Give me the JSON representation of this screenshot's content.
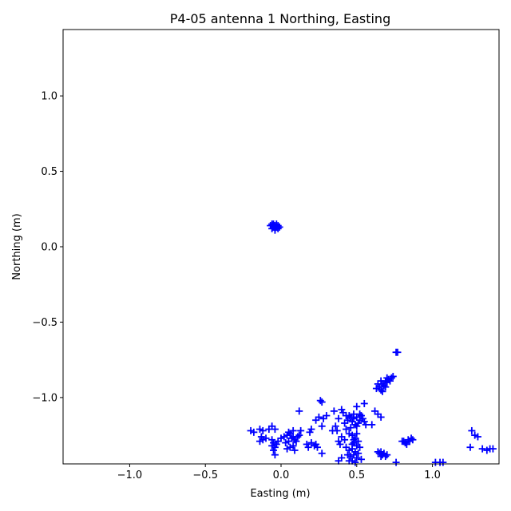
{
  "chart_data": {
    "type": "scatter",
    "title": "P4-05 antenna 1 Northing, Easting",
    "xlabel": "Easting (m)",
    "ylabel": "Northing (m)",
    "xlim": [
      -1.44,
      1.44
    ],
    "ylim": [
      -1.44,
      1.44
    ],
    "xticks": [
      {
        "value": -1.0,
        "label": "−1.0"
      },
      {
        "value": -0.5,
        "label": "−0.5"
      },
      {
        "value": 0.0,
        "label": "0.0"
      },
      {
        "value": 0.5,
        "label": "0.5"
      },
      {
        "value": 1.0,
        "label": "1.0"
      }
    ],
    "yticks": [
      {
        "value": 1.0,
        "label": "1.0"
      },
      {
        "value": 0.5,
        "label": "0.5"
      },
      {
        "value": 0.0,
        "label": "0.0"
      },
      {
        "value": -0.5,
        "label": "−0.5"
      },
      {
        "value": -1.0,
        "label": "−1.0"
      }
    ],
    "grid": false,
    "marker": "+",
    "color": "#0000ff",
    "series": [
      {
        "points": [
          [
            -0.05,
            0.14
          ],
          [
            -0.03,
            0.13
          ],
          [
            -0.06,
            0.15
          ],
          [
            -0.04,
            0.12
          ],
          [
            -0.02,
            0.14
          ],
          [
            -0.05,
            0.13
          ],
          [
            -0.07,
            0.14
          ],
          [
            -0.03,
            0.15
          ],
          [
            -0.04,
            0.11
          ],
          [
            -0.02,
            0.12
          ],
          [
            -0.06,
            0.12
          ],
          [
            -0.05,
            0.15
          ],
          [
            -0.01,
            0.13
          ],
          [
            -0.04,
            0.14
          ],
          [
            0.77,
            -0.7
          ],
          [
            0.76,
            -0.7
          ],
          [
            0.65,
            -0.93
          ],
          [
            0.67,
            -0.91
          ],
          [
            0.69,
            -0.89
          ],
          [
            0.71,
            -0.88
          ],
          [
            0.73,
            -0.87
          ],
          [
            0.66,
            -0.95
          ],
          [
            0.68,
            -0.92
          ],
          [
            0.7,
            -0.9
          ],
          [
            0.64,
            -0.91
          ],
          [
            0.72,
            -0.89
          ],
          [
            0.66,
            -0.89
          ],
          [
            0.69,
            -0.93
          ],
          [
            0.74,
            -0.86
          ],
          [
            0.67,
            -0.96
          ],
          [
            0.63,
            -0.94
          ],
          [
            0.7,
            -0.87
          ],
          [
            0.26,
            -1.02
          ],
          [
            0.27,
            -1.03
          ],
          [
            0.55,
            -1.04
          ],
          [
            0.5,
            -1.06
          ],
          [
            0.4,
            -1.08
          ],
          [
            0.35,
            -1.09
          ],
          [
            0.12,
            -1.09
          ],
          [
            0.62,
            -1.09
          ],
          [
            0.64,
            -1.11
          ],
          [
            0.66,
            -1.13
          ],
          [
            0.3,
            -1.12
          ],
          [
            0.25,
            -1.13
          ],
          [
            0.23,
            -1.15
          ],
          [
            0.28,
            -1.14
          ],
          [
            0.45,
            -1.12
          ],
          [
            0.48,
            -1.14
          ],
          [
            0.5,
            -1.13
          ],
          [
            0.52,
            -1.15
          ],
          [
            0.54,
            -1.14
          ],
          [
            0.47,
            -1.16
          ],
          [
            0.49,
            -1.18
          ],
          [
            0.51,
            -1.17
          ],
          [
            0.46,
            -1.13
          ],
          [
            0.53,
            -1.12
          ],
          [
            0.55,
            -1.16
          ],
          [
            0.44,
            -1.15
          ],
          [
            0.48,
            -1.11
          ],
          [
            0.5,
            -1.19
          ],
          [
            0.52,
            -1.11
          ],
          [
            0.42,
            -1.17
          ],
          [
            0.56,
            -1.18
          ],
          [
            0.43,
            -1.12
          ],
          [
            0.41,
            -1.1
          ],
          [
            0.38,
            -1.14
          ],
          [
            0.6,
            -1.18
          ],
          [
            0.46,
            -1.2
          ],
          [
            0.27,
            -1.19
          ],
          [
            0.36,
            -1.19
          ],
          [
            0.34,
            -1.22
          ],
          [
            0.37,
            -1.22
          ],
          [
            0.43,
            -1.21
          ],
          [
            0.45,
            -1.24
          ],
          [
            0.4,
            -1.26
          ],
          [
            0.38,
            -1.29
          ],
          [
            0.39,
            -1.31
          ],
          [
            0.42,
            -1.28
          ],
          [
            0.47,
            -1.25
          ],
          [
            0.49,
            -1.27
          ],
          [
            0.48,
            -1.3
          ],
          [
            0.5,
            -1.32
          ],
          [
            0.47,
            -1.34
          ],
          [
            0.49,
            -1.36
          ],
          [
            0.48,
            -1.38
          ],
          [
            0.5,
            -1.4
          ],
          [
            0.47,
            -1.42
          ],
          [
            0.49,
            -1.43
          ],
          [
            0.51,
            -1.37
          ],
          [
            0.46,
            -1.39
          ],
          [
            0.52,
            -1.33
          ],
          [
            0.51,
            -1.29
          ],
          [
            0.47,
            -1.31
          ],
          [
            0.45,
            -1.35
          ],
          [
            0.53,
            -1.41
          ],
          [
            0.45,
            -1.42
          ],
          [
            0.5,
            -1.24
          ],
          [
            0.48,
            -1.28
          ],
          [
            0.4,
            -1.4
          ],
          [
            0.38,
            -1.42
          ],
          [
            0.44,
            -1.38
          ],
          [
            0.43,
            -1.33
          ],
          [
            0.27,
            -1.37
          ],
          [
            0.65,
            -1.37
          ],
          [
            0.66,
            -1.36
          ],
          [
            0.67,
            -1.38
          ],
          [
            0.68,
            -1.37
          ],
          [
            0.69,
            -1.39
          ],
          [
            0.66,
            -1.39
          ],
          [
            0.64,
            -1.36
          ],
          [
            0.7,
            -1.38
          ],
          [
            0.8,
            -1.29
          ],
          [
            0.82,
            -1.3
          ],
          [
            0.84,
            -1.28
          ],
          [
            0.86,
            -1.27
          ],
          [
            0.85,
            -1.29
          ],
          [
            0.83,
            -1.31
          ],
          [
            0.87,
            -1.28
          ],
          [
            0.81,
            -1.29
          ],
          [
            0.76,
            -1.43
          ],
          [
            1.02,
            -1.43
          ],
          [
            1.05,
            -1.43
          ],
          [
            1.07,
            -1.43
          ],
          [
            1.26,
            -1.22
          ],
          [
            1.28,
            -1.25
          ],
          [
            1.3,
            -1.26
          ],
          [
            1.25,
            -1.33
          ],
          [
            1.33,
            -1.34
          ],
          [
            1.36,
            -1.35
          ],
          [
            1.38,
            -1.34
          ],
          [
            1.4,
            -1.34
          ],
          [
            -0.2,
            -1.22
          ],
          [
            -0.18,
            -1.23
          ],
          [
            -0.14,
            -1.21
          ],
          [
            -0.12,
            -1.22
          ],
          [
            -0.08,
            -1.21
          ],
          [
            -0.06,
            -1.19
          ],
          [
            -0.04,
            -1.21
          ],
          [
            -0.13,
            -1.26
          ],
          [
            -0.12,
            -1.28
          ],
          [
            -0.14,
            -1.29
          ],
          [
            -0.1,
            -1.27
          ],
          [
            -0.06,
            -1.28
          ],
          [
            -0.05,
            -1.3
          ],
          [
            -0.04,
            -1.33
          ],
          [
            -0.05,
            -1.35
          ],
          [
            -0.03,
            -1.31
          ],
          [
            -0.06,
            -1.32
          ],
          [
            -0.04,
            -1.38
          ],
          [
            -0.02,
            -1.29
          ],
          [
            0.0,
            -1.27
          ],
          [
            0.02,
            -1.26
          ],
          [
            0.04,
            -1.25
          ],
          [
            0.05,
            -1.23
          ],
          [
            0.06,
            -1.24
          ],
          [
            0.07,
            -1.27
          ],
          [
            0.08,
            -1.26
          ],
          [
            0.09,
            -1.28
          ],
          [
            0.1,
            -1.29
          ],
          [
            0.11,
            -1.26
          ],
          [
            0.12,
            -1.25
          ],
          [
            0.13,
            -1.22
          ],
          [
            0.08,
            -1.22
          ],
          [
            0.05,
            -1.29
          ],
          [
            0.04,
            -1.34
          ],
          [
            0.06,
            -1.33
          ],
          [
            0.08,
            -1.32
          ],
          [
            0.09,
            -1.35
          ],
          [
            0.03,
            -1.3
          ],
          [
            0.17,
            -1.31
          ],
          [
            0.18,
            -1.33
          ],
          [
            0.2,
            -1.3
          ],
          [
            0.22,
            -1.32
          ],
          [
            0.23,
            -1.31
          ],
          [
            0.24,
            -1.33
          ],
          [
            0.19,
            -1.23
          ],
          [
            0.2,
            -1.21
          ]
        ]
      }
    ]
  }
}
